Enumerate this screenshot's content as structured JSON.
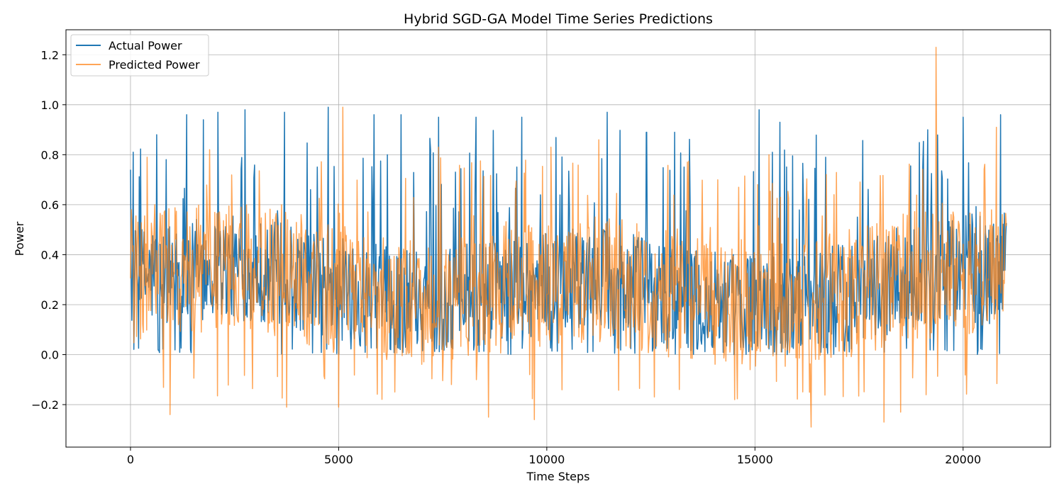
{
  "chart_data": {
    "type": "line",
    "title": "Hybrid SGD-GA Model Time Series Predictions",
    "xlabel": "Time Steps",
    "ylabel": "Power",
    "xlim": [
      -1550,
      22100
    ],
    "ylim": [
      -0.37,
      1.3
    ],
    "xticks": [
      0,
      5000,
      10000,
      15000,
      20000
    ],
    "xtick_labels": [
      "0",
      "5000",
      "10000",
      "15000",
      "20000"
    ],
    "yticks": [
      -0.2,
      0.0,
      0.2,
      0.4,
      0.6,
      0.8,
      1.0,
      1.2
    ],
    "ytick_labels": [
      "−0.2",
      "0.0",
      "0.2",
      "0.4",
      "0.6",
      "0.8",
      "1.0",
      "1.2"
    ],
    "grid": true,
    "legend_position": "top-left",
    "series": [
      {
        "name": "Actual Power",
        "color": "#1f77b4",
        "opacity": 1.0,
        "n_points": 21040,
        "min": 0.0,
        "max": 0.99,
        "peaks": [
          {
            "x": 630,
            "y": 0.88
          },
          {
            "x": 1350,
            "y": 0.96
          },
          {
            "x": 1750,
            "y": 0.94
          },
          {
            "x": 2100,
            "y": 0.97
          },
          {
            "x": 2750,
            "y": 0.98
          },
          {
            "x": 3700,
            "y": 0.97
          },
          {
            "x": 4750,
            "y": 0.99
          },
          {
            "x": 5850,
            "y": 0.96
          },
          {
            "x": 6500,
            "y": 0.96
          },
          {
            "x": 7400,
            "y": 0.95
          },
          {
            "x": 8300,
            "y": 0.95
          },
          {
            "x": 9400,
            "y": 0.95
          },
          {
            "x": 11450,
            "y": 0.97
          },
          {
            "x": 12400,
            "y": 0.89
          },
          {
            "x": 15100,
            "y": 0.98
          },
          {
            "x": 15600,
            "y": 0.93
          },
          {
            "x": 19150,
            "y": 0.9
          },
          {
            "x": 20000,
            "y": 0.95
          },
          {
            "x": 20900,
            "y": 0.96
          }
        ]
      },
      {
        "name": "Predicted Power",
        "color": "#ff7f0e",
        "opacity": 0.7,
        "n_points": 21040,
        "min": -0.29,
        "max": 1.23,
        "peaks": [
          {
            "x": 20,
            "y": 0.58
          },
          {
            "x": 400,
            "y": 0.79
          },
          {
            "x": 1900,
            "y": 0.82
          },
          {
            "x": 5100,
            "y": 0.99
          },
          {
            "x": 7400,
            "y": 0.83
          },
          {
            "x": 10100,
            "y": 0.83
          },
          {
            "x": 11250,
            "y": 0.86
          },
          {
            "x": 16900,
            "y": 0.64
          },
          {
            "x": 19350,
            "y": 1.23
          },
          {
            "x": 20800,
            "y": 0.91
          }
        ],
        "troughs": [
          {
            "x": 950,
            "y": -0.24
          },
          {
            "x": 3750,
            "y": -0.21
          },
          {
            "x": 5000,
            "y": -0.21
          },
          {
            "x": 8600,
            "y": -0.25
          },
          {
            "x": 9700,
            "y": -0.26
          },
          {
            "x": 16350,
            "y": -0.29
          },
          {
            "x": 18100,
            "y": -0.27
          },
          {
            "x": 18500,
            "y": -0.23
          }
        ]
      }
    ]
  }
}
